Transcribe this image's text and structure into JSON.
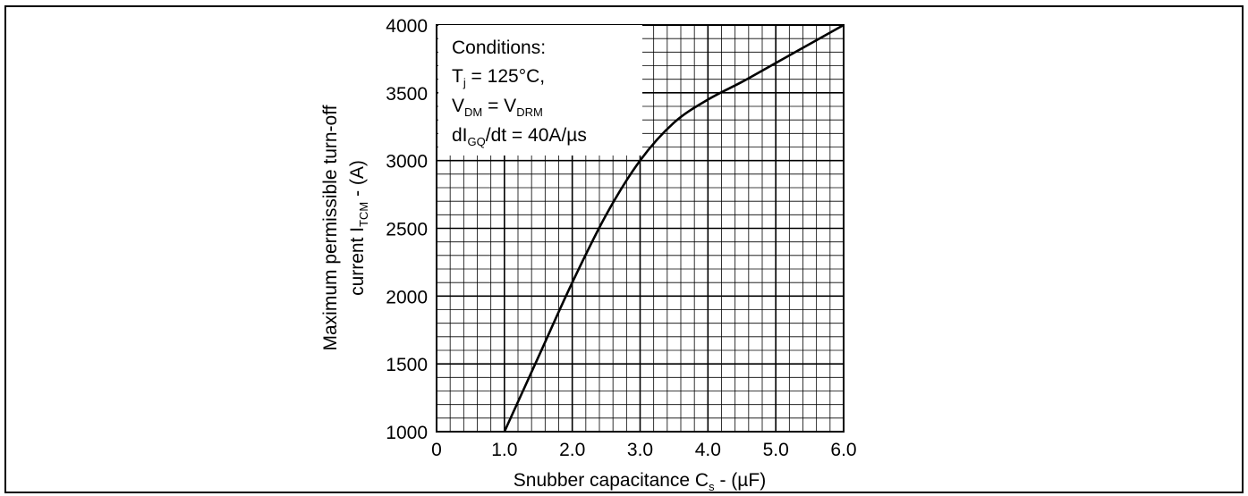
{
  "chart_data": {
    "type": "line",
    "xlabel": {
      "main": "Snubber capacitance C",
      "sub": "s",
      "tail": " - (µF)"
    },
    "ylabel": {
      "line1": "Maximum permissible turn-off",
      "line2_pre": "current I",
      "line2_sub": "TCM",
      "line2_post": " - (A)"
    },
    "xlim": [
      0,
      6.0
    ],
    "ylim": [
      1000,
      4000
    ],
    "x_ticks": [
      "0",
      "1.0",
      "2.0",
      "3.0",
      "4.0",
      "5.0",
      "6.0"
    ],
    "y_ticks": [
      "1000",
      "1500",
      "2000",
      "2500",
      "3000",
      "3500",
      "4000"
    ],
    "grid": true,
    "annotation": {
      "title": "Conditions:",
      "line1": {
        "pre": "T",
        "sub": "j",
        "post": " = 125°C,"
      },
      "line2": {
        "pre": "V",
        "sub": "DM",
        "mid": " = V",
        "sub2": "DRM"
      },
      "line3": {
        "pre": "dI",
        "sub": "GQ",
        "post": "/dt = 40A/µs"
      }
    },
    "series": [
      {
        "x": [
          1.0,
          1.5,
          2.0,
          2.5,
          3.0,
          3.5,
          4.0,
          4.5,
          5.0,
          5.5,
          6.0
        ],
        "y": [
          1000,
          1550,
          2100,
          2600,
          3000,
          3280,
          3450,
          3580,
          3720,
          3860,
          4000
        ]
      }
    ]
  }
}
